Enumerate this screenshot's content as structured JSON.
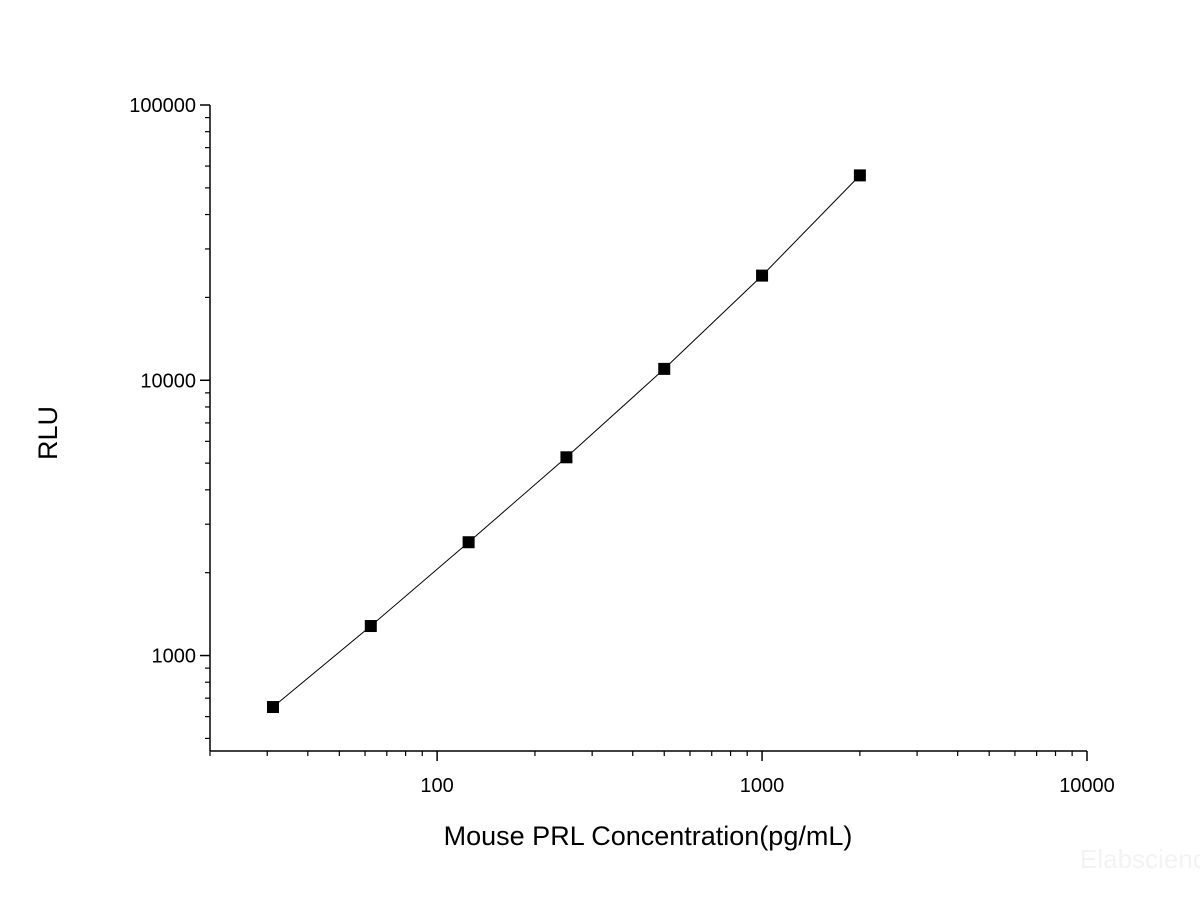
{
  "chart_data": {
    "type": "line",
    "xlabel": "Mouse PRL Concentration(pg/mL)",
    "ylabel": "RLU",
    "x_scale": "log",
    "y_scale": "log",
    "xlim": [
      20,
      10000
    ],
    "ylim": [
      450,
      100000
    ],
    "x_ticks": [
      {
        "value": 100,
        "label": "100"
      },
      {
        "value": 1000,
        "label": "1000"
      },
      {
        "value": 10000,
        "label": "10000"
      }
    ],
    "y_ticks": [
      {
        "value": 1000,
        "label": "1000"
      },
      {
        "value": 10000,
        "label": "10000"
      },
      {
        "value": 100000,
        "label": "100000"
      }
    ],
    "grid": false,
    "legend": "none",
    "series": [
      {
        "marker": "square",
        "color": "#000000",
        "x": [
          31.25,
          62.5,
          125,
          250,
          500,
          1000,
          2000
        ],
        "y": [
          650,
          1280,
          2580,
          5250,
          11000,
          24000,
          55500
        ]
      }
    ]
  },
  "watermark": "Elabscience"
}
